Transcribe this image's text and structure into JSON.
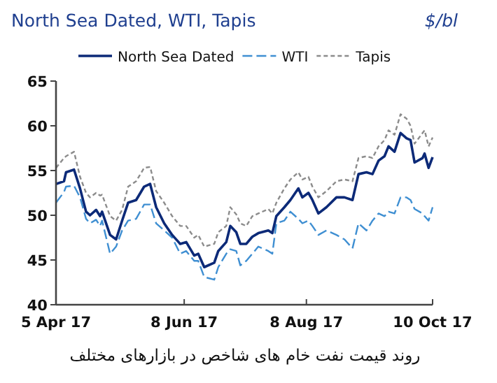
{
  "chart_data": {
    "type": "line",
    "title": "North Sea Dated, WTI, Tapis",
    "ylabel": "$/bl",
    "annotations": [
      "روند قیمت نفت خام های شاخص در بازارهای مختلف"
    ],
    "x": [
      "2017-04-05",
      "2017-04-09",
      "2017-04-10",
      "2017-04-14",
      "2017-04-17",
      "2017-04-20",
      "2017-04-22",
      "2017-04-25",
      "2017-04-27",
      "2017-04-28",
      "2017-05-02",
      "2017-05-05",
      "2017-05-08",
      "2017-05-11",
      "2017-05-15",
      "2017-05-19",
      "2017-05-22",
      "2017-05-25",
      "2017-05-29",
      "2017-06-02",
      "2017-06-06",
      "2017-06-09",
      "2017-06-13",
      "2017-06-15",
      "2017-06-18",
      "2017-06-23",
      "2017-06-25",
      "2017-06-29",
      "2017-07-01",
      "2017-07-04",
      "2017-07-06",
      "2017-07-09",
      "2017-07-12",
      "2017-07-15",
      "2017-07-20",
      "2017-07-22",
      "2017-07-24",
      "2017-07-28",
      "2017-07-31",
      "2017-08-04",
      "2017-08-06",
      "2017-08-09",
      "2017-08-11",
      "2017-08-14",
      "2017-08-18",
      "2017-08-23",
      "2017-08-27",
      "2017-08-31",
      "2017-09-03",
      "2017-09-07",
      "2017-09-10",
      "2017-09-13",
      "2017-09-16",
      "2017-09-18",
      "2017-09-21",
      "2017-09-24",
      "2017-09-27",
      "2017-09-29",
      "2017-10-01",
      "2017-10-05",
      "2017-10-06",
      "2017-10-08",
      "2017-10-10"
    ],
    "series": [
      {
        "name": "North Sea Dated",
        "color": "#0c2a78",
        "line_style": "solid",
        "values": [
          53.5,
          53.8,
          54.8,
          55.1,
          53.0,
          50.4,
          50.0,
          50.6,
          49.9,
          50.4,
          47.8,
          47.3,
          49.4,
          51.4,
          51.7,
          53.2,
          53.5,
          50.9,
          49.1,
          47.8,
          46.8,
          47.0,
          45.5,
          45.7,
          44.2,
          44.7,
          46.0,
          47.0,
          48.8,
          48.1,
          46.8,
          46.8,
          47.6,
          48.0,
          48.3,
          48.0,
          49.9,
          50.9,
          51.7,
          53.0,
          52.0,
          52.5,
          51.7,
          50.2,
          50.9,
          52.0,
          52.0,
          51.7,
          54.6,
          54.8,
          54.6,
          56.1,
          56.6,
          57.7,
          57.1,
          59.2,
          58.6,
          58.4,
          55.9,
          56.4,
          56.9,
          55.3,
          56.5
        ]
      },
      {
        "name": "WTI",
        "color": "#3f8fd2",
        "line_style": "dashed",
        "values": [
          51.4,
          52.6,
          53.2,
          53.3,
          52.0,
          49.6,
          49.1,
          49.5,
          48.8,
          49.4,
          45.7,
          46.5,
          48.3,
          49.4,
          49.6,
          51.2,
          51.2,
          49.1,
          48.3,
          47.5,
          45.7,
          46.0,
          44.9,
          44.9,
          43.1,
          42.8,
          44.2,
          45.7,
          46.2,
          46.0,
          44.4,
          44.9,
          45.7,
          46.5,
          46.0,
          45.7,
          49.1,
          49.4,
          50.4,
          49.6,
          49.1,
          49.4,
          48.8,
          47.8,
          48.3,
          47.8,
          47.3,
          46.3,
          49.1,
          48.3,
          49.4,
          50.2,
          49.9,
          50.4,
          50.2,
          52.0,
          52.0,
          51.7,
          50.7,
          50.2,
          49.9,
          49.4,
          50.9
        ]
      },
      {
        "name": "Tapis",
        "color": "#8c8c8c",
        "line_style": "dotted",
        "values": [
          55.3,
          56.4,
          56.6,
          57.1,
          54.3,
          52.5,
          52.0,
          52.5,
          52.2,
          52.3,
          49.9,
          49.4,
          50.6,
          53.2,
          53.8,
          55.3,
          55.4,
          52.7,
          51.4,
          49.9,
          48.8,
          48.8,
          47.5,
          47.8,
          46.5,
          46.8,
          48.1,
          48.8,
          50.9,
          50.1,
          49.1,
          48.8,
          49.9,
          50.2,
          50.7,
          50.2,
          51.4,
          53.0,
          54.0,
          54.8,
          54.0,
          54.3,
          53.2,
          52.0,
          52.7,
          53.8,
          54.0,
          53.8,
          56.4,
          56.6,
          56.4,
          57.7,
          58.4,
          59.5,
          59.0,
          61.3,
          60.8,
          60.0,
          58.0,
          59.2,
          59.5,
          57.7,
          58.7
        ]
      }
    ],
    "xlim": [
      "2017-04-05",
      "2017-10-10"
    ],
    "xticks": [
      {
        "value": "2017-04-05",
        "label": "5 Apr 17"
      },
      {
        "value": "2017-06-08",
        "label": "8 Jun 17"
      },
      {
        "value": "2017-08-08",
        "label": "8 Aug 17"
      },
      {
        "value": "2017-10-10",
        "label": "10 Oct 17"
      }
    ],
    "ylim": [
      40,
      65
    ],
    "yticks": [
      40,
      45,
      50,
      55,
      60,
      65
    ],
    "legend": "top",
    "grid": false
  }
}
